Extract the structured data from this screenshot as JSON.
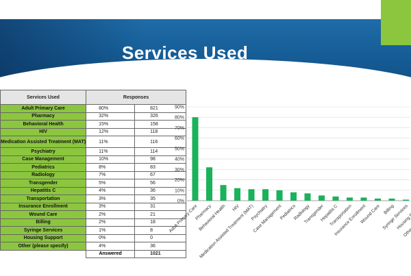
{
  "slide": {
    "title": "Services Used",
    "colors": {
      "banner": "#175f99",
      "accent": "#8cc63f",
      "bar": "#1ab25a"
    }
  },
  "table": {
    "headers": [
      "Services Used",
      "Responses"
    ],
    "rows": [
      {
        "label": "Adult  Primary Care",
        "pct": "80%",
        "count": "821"
      },
      {
        "label": "Pharmacy",
        "pct": "32%",
        "count": "326"
      },
      {
        "label": "Behavioral Health",
        "pct": "15%",
        "count": "158"
      },
      {
        "label": "HIV",
        "pct": "12%",
        "count": "118"
      },
      {
        "label": "Medication Assisted Treatment (MAT)",
        "pct": "11%",
        "count": "116"
      },
      {
        "label": "Psychiatry",
        "pct": "11%",
        "count": "114"
      },
      {
        "label": "Case Management",
        "pct": "10%",
        "count": "98"
      },
      {
        "label": "Pediatrics",
        "pct": "8%",
        "count": "83"
      },
      {
        "label": "Radiology",
        "pct": "7%",
        "count": "67"
      },
      {
        "label": "Transgender",
        "pct": "5%",
        "count": "56"
      },
      {
        "label": "Hepatitis C",
        "pct": "4%",
        "count": "36"
      },
      {
        "label": "Transportation",
        "pct": "3%",
        "count": "35"
      },
      {
        "label": "Insurance Enrollment",
        "pct": "3%",
        "count": "31"
      },
      {
        "label": "Wound Care",
        "pct": "2%",
        "count": "21"
      },
      {
        "label": "Billing",
        "pct": "2%",
        "count": "18"
      },
      {
        "label": "Syringe  Services",
        "pct": "1%",
        "count": "8"
      },
      {
        "label": "Housing  Support",
        "pct": "0%",
        "count": "0"
      },
      {
        "label": "Other (please specify)",
        "pct": "4%",
        "count": "36"
      }
    ],
    "answered_label": "Answered",
    "answered_count": "1021"
  },
  "chart_data": {
    "type": "bar",
    "categories": [
      "Adult Primary Care",
      "Pharmacy",
      "Behavioral Health",
      "HIV",
      "Medication Assisted Treatment (MAT)",
      "Psychiatry",
      "Case Management",
      "Pediatrics",
      "Radiology",
      "Transgender",
      "Hepatitis C",
      "Transportation",
      "Insurance Enrollment",
      "Wound Care",
      "Billing",
      "Syringe Services",
      "Housing Support",
      "Other (please specify)"
    ],
    "values": [
      80,
      32,
      15,
      12,
      11,
      11,
      10,
      8,
      7,
      5,
      4,
      3,
      3,
      2,
      2,
      1,
      0,
      4
    ],
    "ylim": [
      0,
      90
    ],
    "yticks": [
      "0%",
      "10%",
      "20%",
      "30%",
      "40%",
      "50%",
      "60%",
      "70%",
      "80%",
      "90%"
    ],
    "grid": true,
    "xlabel": "",
    "ylabel": ""
  }
}
